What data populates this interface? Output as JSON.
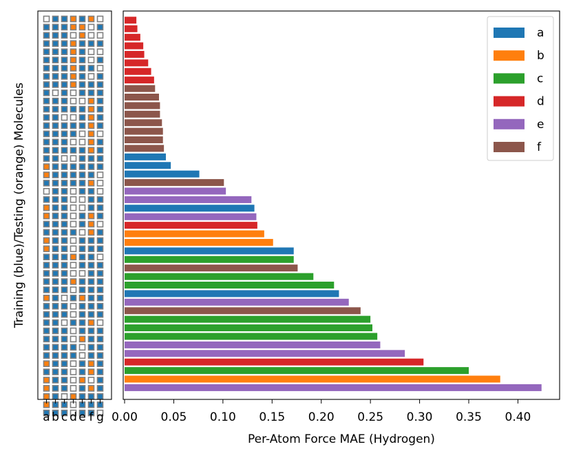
{
  "chart_data": [
    {
      "type": "matrix",
      "title": "",
      "ylabel": "Training (blue)/Testing (orange) Molecules",
      "columns": [
        "a",
        "b",
        "c",
        "d",
        "e",
        "f",
        "g"
      ],
      "colors": {
        "train": "#1f77b4",
        "test": "#ff7f0e",
        "unused": "#ffffff",
        "border": "#808080"
      },
      "legend_meaning": {
        "T": "training (blue)",
        "E": "testing (orange)",
        ".": "not used (white)"
      },
      "rows": [
        ".TTETE.",
        "TTTEE.T",
        "TTT.E..",
        "TTTETTT",
        "TTTET..",
        "TTTET.T",
        "TTTETT.",
        "TTTET.T",
        "TTTETTT",
        "T.T.TTT",
        "TTT..ET",
        "TTTTTET",
        "TT..TET",
        "TTTTTET",
        "TTTT.E.",
        "TTT..ET",
        "TTTTTET",
        "TT..TTT",
        "ETTTTTT",
        "ETTTTT.",
        "TTTTTE.",
        ".TT.TT.",
        "TTT..TT",
        "ETT..TT",
        "ETT.TET",
        "TTT.TE.",
        "TTTT.ET",
        "ETT.TTT",
        "ETT.TTT",
        "TTTETT.",
        "TTT.TTT",
        "TTT..TT",
        "TTTETTT",
        "TTT.TTT",
        "ET.TETT",
        "TTT.TTT",
        "TTT.TTT",
        "TT.TTE.",
        "TTT.TTT",
        "TTT.ETT",
        "TTTT.TT",
        "TTTT.TT",
        "ETT.TET",
        "TTT.TET",
        "ETT.E.T",
        "ETT.TET",
        "ET.ETTT",
        "ETT.TTT",
        "TTT.TT."
      ],
      "ticks": [
        "a",
        "b",
        "c",
        "d",
        "e",
        "f",
        "g"
      ]
    },
    {
      "type": "bar",
      "orientation": "horizontal",
      "xlabel": "Per-Atom Force MAE (Hydrogen)",
      "ylabel": "",
      "xlim": [
        0.0,
        0.435
      ],
      "xticks": [
        "0.00",
        "0.05",
        "0.10",
        "0.15",
        "0.20",
        "0.25",
        "0.30",
        "0.35",
        "0.40"
      ],
      "xtick_values": [
        0.0,
        0.05,
        0.1,
        0.15,
        0.2,
        0.25,
        0.3,
        0.35,
        0.4
      ],
      "legend": {
        "position": "top-right",
        "entries": [
          {
            "label": "a",
            "color": "#1f77b4"
          },
          {
            "label": "b",
            "color": "#ff7f0e"
          },
          {
            "label": "c",
            "color": "#2ca02c"
          },
          {
            "label": "d",
            "color": "#d62728"
          },
          {
            "label": "e",
            "color": "#9467bd"
          },
          {
            "label": "f",
            "color": "#8c564b"
          }
        ]
      },
      "bars": [
        {
          "value": 0.012,
          "group": "d"
        },
        {
          "value": 0.013,
          "group": "d"
        },
        {
          "value": 0.016,
          "group": "d"
        },
        {
          "value": 0.019,
          "group": "d"
        },
        {
          "value": 0.02,
          "group": "d"
        },
        {
          "value": 0.024,
          "group": "d"
        },
        {
          "value": 0.027,
          "group": "d"
        },
        {
          "value": 0.03,
          "group": "d"
        },
        {
          "value": 0.031,
          "group": "f"
        },
        {
          "value": 0.035,
          "group": "f"
        },
        {
          "value": 0.036,
          "group": "f"
        },
        {
          "value": 0.036,
          "group": "f"
        },
        {
          "value": 0.038,
          "group": "f"
        },
        {
          "value": 0.039,
          "group": "f"
        },
        {
          "value": 0.039,
          "group": "f"
        },
        {
          "value": 0.04,
          "group": "f"
        },
        {
          "value": 0.042,
          "group": "a"
        },
        {
          "value": 0.047,
          "group": "a"
        },
        {
          "value": 0.076,
          "group": "a"
        },
        {
          "value": 0.101,
          "group": "f"
        },
        {
          "value": 0.103,
          "group": "e"
        },
        {
          "value": 0.129,
          "group": "e"
        },
        {
          "value": 0.132,
          "group": "a"
        },
        {
          "value": 0.134,
          "group": "e"
        },
        {
          "value": 0.135,
          "group": "d"
        },
        {
          "value": 0.142,
          "group": "b"
        },
        {
          "value": 0.151,
          "group": "b"
        },
        {
          "value": 0.172,
          "group": "a"
        },
        {
          "value": 0.172,
          "group": "c"
        },
        {
          "value": 0.176,
          "group": "f"
        },
        {
          "value": 0.192,
          "group": "c"
        },
        {
          "value": 0.213,
          "group": "c"
        },
        {
          "value": 0.218,
          "group": "a"
        },
        {
          "value": 0.228,
          "group": "e"
        },
        {
          "value": 0.24,
          "group": "f"
        },
        {
          "value": 0.25,
          "group": "c"
        },
        {
          "value": 0.252,
          "group": "c"
        },
        {
          "value": 0.257,
          "group": "c"
        },
        {
          "value": 0.26,
          "group": "e"
        },
        {
          "value": 0.285,
          "group": "e"
        },
        {
          "value": 0.304,
          "group": "d"
        },
        {
          "value": 0.35,
          "group": "c"
        },
        {
          "value": 0.382,
          "group": "b"
        },
        {
          "value": 0.424,
          "group": "e"
        }
      ]
    }
  ]
}
